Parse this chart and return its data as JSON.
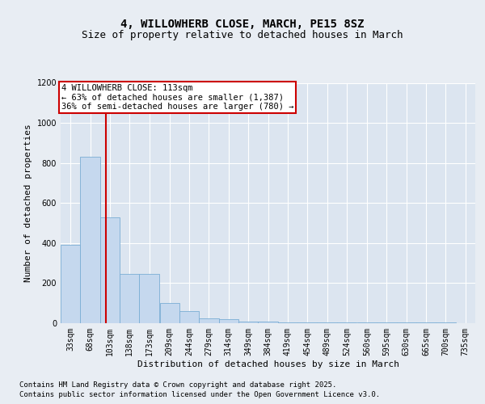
{
  "title": "4, WILLOWHERB CLOSE, MARCH, PE15 8SZ",
  "subtitle": "Size of property relative to detached houses in March",
  "xlabel": "Distribution of detached houses by size in March",
  "ylabel": "Number of detached properties",
  "bin_labels": [
    "33sqm",
    "68sqm",
    "103sqm",
    "138sqm",
    "173sqm",
    "209sqm",
    "244sqm",
    "279sqm",
    "314sqm",
    "349sqm",
    "384sqm",
    "419sqm",
    "454sqm",
    "489sqm",
    "524sqm",
    "560sqm",
    "595sqm",
    "630sqm",
    "665sqm",
    "700sqm",
    "735sqm"
  ],
  "bin_edges": [
    33,
    68,
    103,
    138,
    173,
    209,
    244,
    279,
    314,
    349,
    384,
    419,
    454,
    489,
    524,
    560,
    595,
    630,
    665,
    700,
    735
  ],
  "bar_heights": [
    390,
    830,
    530,
    245,
    245,
    100,
    60,
    25,
    20,
    10,
    10,
    5,
    5,
    5,
    5,
    5,
    5,
    5,
    5,
    5
  ],
  "bar_color": "#c5d8ee",
  "bar_edgecolor": "#7aadd4",
  "property_size": 113,
  "vline_color": "#cc0000",
  "annotation_text": "4 WILLOWHERB CLOSE: 113sqm\n← 63% of detached houses are smaller (1,387)\n36% of semi-detached houses are larger (780) →",
  "annotation_box_color": "#cc0000",
  "ylim": [
    0,
    1200
  ],
  "yticks": [
    0,
    200,
    400,
    600,
    800,
    1000,
    1200
  ],
  "bg_color": "#e8edf3",
  "plot_bg_color": "#dce5f0",
  "grid_color": "#ffffff",
  "footer_line1": "Contains HM Land Registry data © Crown copyright and database right 2025.",
  "footer_line2": "Contains public sector information licensed under the Open Government Licence v3.0.",
  "title_fontsize": 10,
  "subtitle_fontsize": 9,
  "axis_label_fontsize": 8,
  "tick_fontsize": 7,
  "annotation_fontsize": 7.5,
  "footer_fontsize": 6.5
}
